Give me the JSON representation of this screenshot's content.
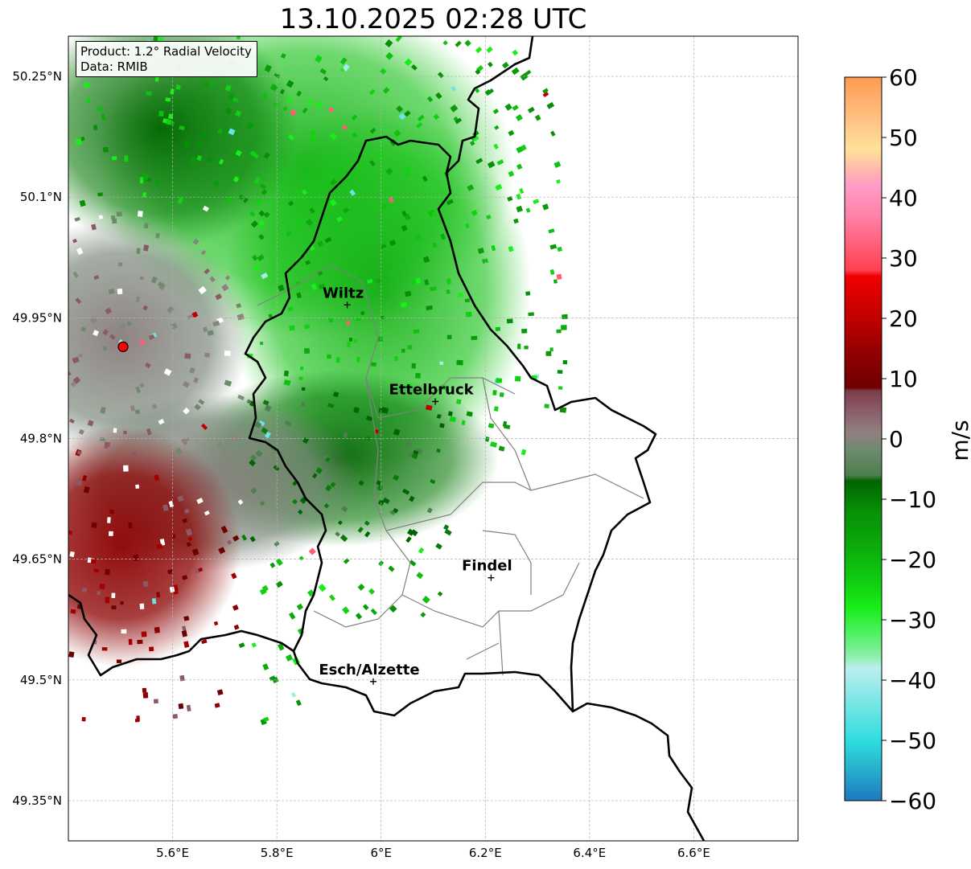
{
  "title": "13.10.2025 02:28 UTC",
  "info": {
    "product": "Product: 1.2° Radial Velocity",
    "data": "Data: RMIB"
  },
  "map": {
    "lon_range": [
      5.4,
      6.8
    ],
    "lat_range": [
      49.3,
      50.3
    ],
    "lat_ticks": [
      {
        "value": 50.25,
        "label": "50.25°N"
      },
      {
        "value": 50.1,
        "label": "50.1°N"
      },
      {
        "value": 49.95,
        "label": "49.95°N"
      },
      {
        "value": 49.8,
        "label": "49.8°N"
      },
      {
        "value": 49.65,
        "label": "49.65°N"
      },
      {
        "value": 49.5,
        "label": "49.5°N"
      },
      {
        "value": 49.35,
        "label": "49.35°N"
      }
    ],
    "lon_ticks": [
      {
        "value": 5.6,
        "label": "5.6°E"
      },
      {
        "value": 5.8,
        "label": "5.8°E"
      },
      {
        "value": 6.0,
        "label": "6°E"
      },
      {
        "value": 6.2,
        "label": "6.2°E"
      },
      {
        "value": 6.4,
        "label": "6.4°E"
      },
      {
        "value": 6.6,
        "label": "6.6°E"
      }
    ],
    "grid": true,
    "radar_site": {
      "lon": 5.505,
      "lat": 49.914,
      "color": "#ff0000"
    },
    "cities": [
      {
        "name": "Wiltz",
        "lon": 5.935,
        "lat": 49.966
      },
      {
        "name": "Ettelbruck",
        "lon": 6.104,
        "lat": 49.846
      },
      {
        "name": "Findel",
        "lon": 6.211,
        "lat": 49.627
      },
      {
        "name": "Esch/Alzette",
        "lon": 5.985,
        "lat": 49.498
      }
    ],
    "border_color": "#000000",
    "canton_color": "#808080"
  },
  "colorbar": {
    "label": "m/s",
    "min": -60,
    "max": 60,
    "ticks": [
      {
        "value": 60,
        "label": "60"
      },
      {
        "value": 50,
        "label": "50"
      },
      {
        "value": 40,
        "label": "40"
      },
      {
        "value": 30,
        "label": "30"
      },
      {
        "value": 20,
        "label": "20"
      },
      {
        "value": 10,
        "label": "10"
      },
      {
        "value": 0,
        "label": "0"
      },
      {
        "value": -10,
        "label": "−10"
      },
      {
        "value": -20,
        "label": "−20"
      },
      {
        "value": -30,
        "label": "−30"
      },
      {
        "value": -40,
        "label": "−40"
      },
      {
        "value": -50,
        "label": "−50"
      },
      {
        "value": -60,
        "label": "−60"
      }
    ],
    "stops": [
      {
        "v": -60,
        "c": "#1f78c0"
      },
      {
        "v": -54,
        "c": "#28b8cf"
      },
      {
        "v": -50,
        "c": "#2fdde0"
      },
      {
        "v": -45,
        "c": "#6ae4e4"
      },
      {
        "v": -40,
        "c": "#a6ebeb"
      },
      {
        "v": -38,
        "c": "#bdeef0"
      },
      {
        "v": -36,
        "c": "#8af0a8"
      },
      {
        "v": -32,
        "c": "#4cf060"
      },
      {
        "v": -28,
        "c": "#19ee19"
      },
      {
        "v": -24,
        "c": "#10d010"
      },
      {
        "v": -18,
        "c": "#0cab0c"
      },
      {
        "v": -12,
        "c": "#079007"
      },
      {
        "v": -7,
        "c": "#006400"
      },
      {
        "v": -6,
        "c": "#4f7e4f"
      },
      {
        "v": -2,
        "c": "#6d8a6d"
      },
      {
        "v": 1,
        "c": "#908080"
      },
      {
        "v": 5,
        "c": "#8a5a66"
      },
      {
        "v": 8,
        "c": "#7c3c4a"
      },
      {
        "v": 8.5,
        "c": "#6e0000"
      },
      {
        "v": 14,
        "c": "#8f0000"
      },
      {
        "v": 20,
        "c": "#c00000"
      },
      {
        "v": 27,
        "c": "#f00000"
      },
      {
        "v": 28,
        "c": "#ff4050"
      },
      {
        "v": 32,
        "c": "#ff5e76"
      },
      {
        "v": 37,
        "c": "#ff82a8"
      },
      {
        "v": 42,
        "c": "#ff9cc8"
      },
      {
        "v": 44,
        "c": "#ffb0b0"
      },
      {
        "v": 48,
        "c": "#ffe29a"
      },
      {
        "v": 52,
        "c": "#ffc88a"
      },
      {
        "v": 56,
        "c": "#ffb070"
      },
      {
        "v": 60,
        "c": "#ff9a50"
      }
    ]
  }
}
